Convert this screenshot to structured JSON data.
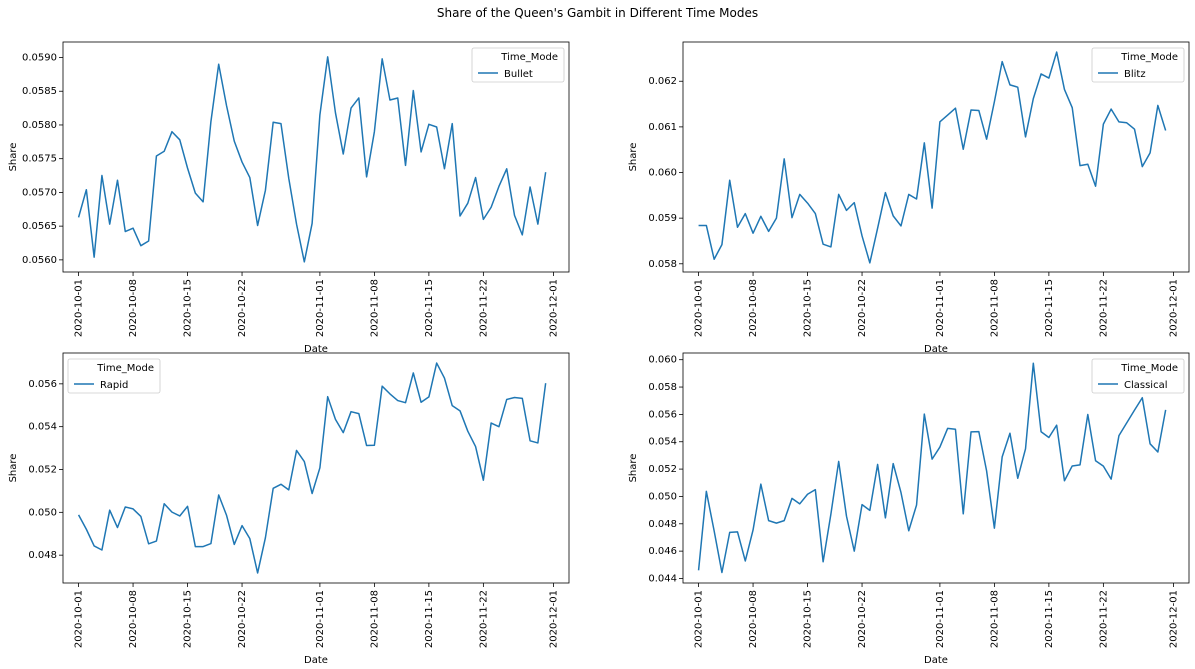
{
  "figure": {
    "suptitle": "Share of the Queen's Gambit in Different Time Modes",
    "line_color": "#1f77b4"
  },
  "chart_data": [
    {
      "type": "line",
      "xlabel": "Date",
      "ylabel": "Share",
      "legend": {
        "title": "Time_Mode",
        "placement": "top-right"
      },
      "x_ticks": [
        "2020-10-01",
        "2020-10-08",
        "2020-10-15",
        "2020-10-22",
        "2020-11-01",
        "2020-11-08",
        "2020-11-15",
        "2020-11-22",
        "2020-12-01"
      ],
      "y_ticks": [
        "0.0560",
        "0.0565",
        "0.0570",
        "0.0575",
        "0.0580",
        "0.0585",
        "0.0590"
      ],
      "xlim": [
        "2020-09-29",
        "2020-12-03"
      ],
      "ylim": [
        0.05582,
        0.05923
      ],
      "series": [
        {
          "name": "Bullet",
          "x": [
            "2020-10-01",
            "2020-10-02",
            "2020-10-03",
            "2020-10-04",
            "2020-10-05",
            "2020-10-06",
            "2020-10-07",
            "2020-10-08",
            "2020-10-09",
            "2020-10-10",
            "2020-10-11",
            "2020-10-12",
            "2020-10-13",
            "2020-10-14",
            "2020-10-15",
            "2020-10-16",
            "2020-10-17",
            "2020-10-18",
            "2020-10-19",
            "2020-10-20",
            "2020-10-21",
            "2020-10-22",
            "2020-10-23",
            "2020-10-24",
            "2020-10-25",
            "2020-10-26",
            "2020-10-27",
            "2020-10-28",
            "2020-10-29",
            "2020-10-30",
            "2020-10-31",
            "2020-11-01",
            "2020-11-02",
            "2020-11-03",
            "2020-11-04",
            "2020-11-05",
            "2020-11-06",
            "2020-11-07",
            "2020-11-08",
            "2020-11-09",
            "2020-11-10",
            "2020-11-11",
            "2020-11-12",
            "2020-11-13",
            "2020-11-14",
            "2020-11-15",
            "2020-11-16",
            "2020-11-17",
            "2020-11-18",
            "2020-11-19",
            "2020-11-20",
            "2020-11-21",
            "2020-11-22",
            "2020-11-23",
            "2020-11-24",
            "2020-11-25",
            "2020-11-26",
            "2020-11-27",
            "2020-11-28",
            "2020-11-29",
            "2020-11-30"
          ],
          "values": [
            0.05663,
            0.05704,
            0.05604,
            0.05725,
            0.05653,
            0.05718,
            0.05642,
            0.05647,
            0.05621,
            0.05628,
            0.05754,
            0.05761,
            0.0579,
            0.05778,
            0.05736,
            0.05699,
            0.05686,
            0.05805,
            0.0589,
            0.05829,
            0.05776,
            0.05745,
            0.05722,
            0.05651,
            0.05703,
            0.05804,
            0.05802,
            0.05721,
            0.05653,
            0.05597,
            0.05654,
            0.05815,
            0.05901,
            0.05818,
            0.05757,
            0.05825,
            0.0584,
            0.05723,
            0.0579,
            0.05898,
            0.05837,
            0.0584,
            0.0574,
            0.05851,
            0.0576,
            0.05801,
            0.05797,
            0.05735,
            0.05802,
            0.05665,
            0.05684,
            0.05722,
            0.0566,
            0.05678,
            0.05709,
            0.05735,
            0.05666,
            0.05637,
            0.05708,
            0.05653,
            0.0573
          ]
        }
      ]
    },
    {
      "type": "line",
      "xlabel": "Date",
      "ylabel": "Share",
      "legend": {
        "title": "Time_Mode",
        "placement": "top-right"
      },
      "x_ticks": [
        "2020-10-01",
        "2020-10-08",
        "2020-10-15",
        "2020-10-22",
        "2020-11-01",
        "2020-11-08",
        "2020-11-15",
        "2020-11-22",
        "2020-12-01"
      ],
      "y_ticks": [
        "0.058",
        "0.059",
        "0.060",
        "0.061",
        "0.062"
      ],
      "xlim": [
        "2020-09-29",
        "2020-12-03"
      ],
      "ylim": [
        0.05782,
        0.06286
      ],
      "series": [
        {
          "name": "Blitz",
          "x": [
            "2020-10-01",
            "2020-10-02",
            "2020-10-03",
            "2020-10-04",
            "2020-10-05",
            "2020-10-06",
            "2020-10-07",
            "2020-10-08",
            "2020-10-09",
            "2020-10-10",
            "2020-10-11",
            "2020-10-12",
            "2020-10-13",
            "2020-10-14",
            "2020-10-15",
            "2020-10-16",
            "2020-10-17",
            "2020-10-18",
            "2020-10-19",
            "2020-10-20",
            "2020-10-21",
            "2020-10-22",
            "2020-10-23",
            "2020-10-24",
            "2020-10-25",
            "2020-10-26",
            "2020-10-27",
            "2020-10-28",
            "2020-10-29",
            "2020-10-30",
            "2020-10-31",
            "2020-11-01",
            "2020-11-02",
            "2020-11-03",
            "2020-11-04",
            "2020-11-05",
            "2020-11-06",
            "2020-11-07",
            "2020-11-08",
            "2020-11-09",
            "2020-11-10",
            "2020-11-11",
            "2020-11-12",
            "2020-11-13",
            "2020-11-14",
            "2020-11-15",
            "2020-11-16",
            "2020-11-17",
            "2020-11-18",
            "2020-11-19",
            "2020-11-20",
            "2020-11-21",
            "2020-11-22",
            "2020-11-23",
            "2020-11-24",
            "2020-11-25",
            "2020-11-26",
            "2020-11-27",
            "2020-11-28",
            "2020-11-29",
            "2020-11-30"
          ],
          "values": [
            0.05884,
            0.05884,
            0.0581,
            0.05842,
            0.05983,
            0.0588,
            0.0591,
            0.05867,
            0.05904,
            0.05871,
            0.059,
            0.0603,
            0.05901,
            0.05952,
            0.05933,
            0.0591,
            0.05843,
            0.05837,
            0.05952,
            0.05917,
            0.05934,
            0.05861,
            0.05802,
            0.05878,
            0.05956,
            0.05905,
            0.05883,
            0.05952,
            0.05942,
            0.06065,
            0.05922,
            0.06111,
            0.06126,
            0.06141,
            0.06051,
            0.06137,
            0.06136,
            0.06073,
            0.06155,
            0.06243,
            0.06192,
            0.06187,
            0.06078,
            0.06162,
            0.06216,
            0.06207,
            0.06264,
            0.06182,
            0.06142,
            0.06015,
            0.06018,
            0.0597,
            0.06106,
            0.06139,
            0.06111,
            0.06109,
            0.06095,
            0.06013,
            0.06043,
            0.06147,
            0.06092
          ]
        }
      ]
    },
    {
      "type": "line",
      "xlabel": "Date",
      "ylabel": "Share",
      "legend": {
        "title": "Time_Mode",
        "placement": "top-left"
      },
      "x_ticks": [
        "2020-10-01",
        "2020-10-08",
        "2020-10-15",
        "2020-10-22",
        "2020-11-01",
        "2020-11-08",
        "2020-11-15",
        "2020-11-22",
        "2020-12-01"
      ],
      "y_ticks": [
        "0.048",
        "0.050",
        "0.052",
        "0.054",
        "0.056"
      ],
      "xlim": [
        "2020-09-29",
        "2020-12-03"
      ],
      "ylim": [
        0.0467,
        0.05744
      ],
      "series": [
        {
          "name": "Rapid",
          "x": [
            "2020-10-01",
            "2020-10-02",
            "2020-10-03",
            "2020-10-04",
            "2020-10-05",
            "2020-10-06",
            "2020-10-07",
            "2020-10-08",
            "2020-10-09",
            "2020-10-10",
            "2020-10-11",
            "2020-10-12",
            "2020-10-13",
            "2020-10-14",
            "2020-10-15",
            "2020-10-16",
            "2020-10-17",
            "2020-10-18",
            "2020-10-19",
            "2020-10-20",
            "2020-10-21",
            "2020-10-22",
            "2020-10-23",
            "2020-10-24",
            "2020-10-25",
            "2020-10-26",
            "2020-10-27",
            "2020-10-28",
            "2020-10-29",
            "2020-10-30",
            "2020-10-31",
            "2020-11-01",
            "2020-11-02",
            "2020-11-03",
            "2020-11-04",
            "2020-11-05",
            "2020-11-06",
            "2020-11-07",
            "2020-11-08",
            "2020-11-09",
            "2020-11-10",
            "2020-11-11",
            "2020-11-12",
            "2020-11-13",
            "2020-11-14",
            "2020-11-15",
            "2020-11-16",
            "2020-11-17",
            "2020-11-18",
            "2020-11-19",
            "2020-11-20",
            "2020-11-21",
            "2020-11-22",
            "2020-11-23",
            "2020-11-24",
            "2020-11-25",
            "2020-11-26",
            "2020-11-27",
            "2020-11-28",
            "2020-11-29",
            "2020-11-30"
          ],
          "values": [
            0.04988,
            0.04921,
            0.04843,
            0.04824,
            0.0501,
            0.04929,
            0.05025,
            0.05016,
            0.04981,
            0.04853,
            0.04866,
            0.0504,
            0.05001,
            0.04983,
            0.05028,
            0.0484,
            0.0484,
            0.04854,
            0.05081,
            0.04987,
            0.0485,
            0.04938,
            0.04877,
            0.04717,
            0.04881,
            0.05112,
            0.05131,
            0.05105,
            0.05289,
            0.05237,
            0.05088,
            0.05208,
            0.0554,
            0.05434,
            0.05372,
            0.0547,
            0.05461,
            0.05312,
            0.05313,
            0.05589,
            0.05553,
            0.05522,
            0.05512,
            0.05651,
            0.05514,
            0.05539,
            0.05697,
            0.05627,
            0.05498,
            0.05474,
            0.05379,
            0.05307,
            0.0515,
            0.05417,
            0.054,
            0.05527,
            0.05536,
            0.05532,
            0.05334,
            0.05324,
            0.05603
          ]
        }
      ]
    },
    {
      "type": "line",
      "xlabel": "Date",
      "ylabel": "Share",
      "legend": {
        "title": "Time_Mode",
        "placement": "top-right"
      },
      "x_ticks": [
        "2020-10-01",
        "2020-10-08",
        "2020-10-15",
        "2020-10-22",
        "2020-11-01",
        "2020-11-08",
        "2020-11-15",
        "2020-11-22",
        "2020-12-01"
      ],
      "y_ticks": [
        "0.044",
        "0.046",
        "0.048",
        "0.050",
        "0.052",
        "0.054",
        "0.056",
        "0.058",
        "0.060"
      ],
      "xlim": [
        "2020-09-29",
        "2020-12-03"
      ],
      "ylim": [
        0.04367,
        0.06049
      ],
      "series": [
        {
          "name": "Classical",
          "x": [
            "2020-10-01",
            "2020-10-02",
            "2020-10-03",
            "2020-10-04",
            "2020-10-05",
            "2020-10-06",
            "2020-10-07",
            "2020-10-08",
            "2020-10-09",
            "2020-10-10",
            "2020-10-11",
            "2020-10-12",
            "2020-10-13",
            "2020-10-14",
            "2020-10-15",
            "2020-10-16",
            "2020-10-17",
            "2020-10-18",
            "2020-10-19",
            "2020-10-20",
            "2020-10-21",
            "2020-10-22",
            "2020-10-23",
            "2020-10-24",
            "2020-10-25",
            "2020-10-26",
            "2020-10-27",
            "2020-10-28",
            "2020-10-29",
            "2020-10-30",
            "2020-10-31",
            "2020-11-01",
            "2020-11-02",
            "2020-11-03",
            "2020-11-04",
            "2020-11-05",
            "2020-11-06",
            "2020-11-07",
            "2020-11-08",
            "2020-11-09",
            "2020-11-10",
            "2020-11-11",
            "2020-11-12",
            "2020-11-13",
            "2020-11-14",
            "2020-11-15",
            "2020-11-16",
            "2020-11-17",
            "2020-11-18",
            "2020-11-19",
            "2020-11-20",
            "2020-11-21",
            "2020-11-22",
            "2020-11-23",
            "2020-11-24",
            "2020-11-25",
            "2020-11-26",
            "2020-11-27",
            "2020-11-28",
            "2020-11-29",
            "2020-11-30"
          ],
          "values": [
            0.0446,
            0.05037,
            0.04748,
            0.04444,
            0.04737,
            0.04741,
            0.04528,
            0.04755,
            0.0509,
            0.04823,
            0.04805,
            0.04823,
            0.04986,
            0.04946,
            0.05016,
            0.0505,
            0.04522,
            0.04872,
            0.05256,
            0.04856,
            0.046,
            0.0494,
            0.04898,
            0.05234,
            0.04843,
            0.0524,
            0.05029,
            0.04749,
            0.04937,
            0.05602,
            0.05273,
            0.05361,
            0.05498,
            0.05491,
            0.04873,
            0.05472,
            0.05474,
            0.05187,
            0.04768,
            0.05289,
            0.05462,
            0.05133,
            0.05348,
            0.05974,
            0.05473,
            0.05431,
            0.05521,
            0.05115,
            0.05223,
            0.05231,
            0.05599,
            0.05261,
            0.05222,
            0.05127,
            0.05445,
            0.05538,
            0.05631,
            0.05722,
            0.05385,
            0.05325,
            0.05633
          ]
        }
      ]
    }
  ]
}
